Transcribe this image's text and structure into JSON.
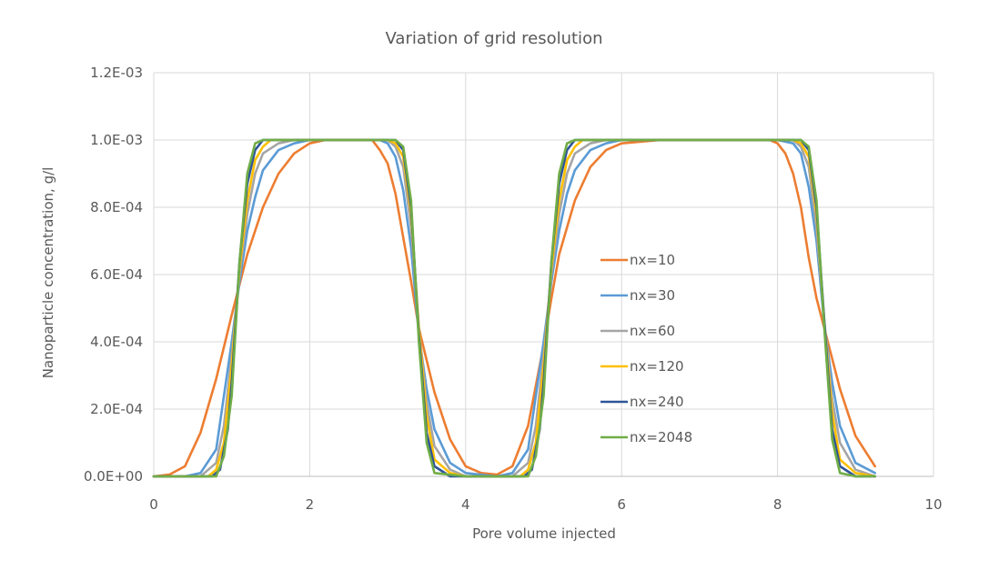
{
  "chart_data": {
    "type": "line",
    "title": "Variation of grid resolution",
    "xlabel": "Pore volume injected",
    "ylabel": "Nanoparticle concentration, g/l",
    "xlim": [
      0,
      10
    ],
    "ylim": [
      0,
      0.0012
    ],
    "x_ticks": [
      "0",
      "2",
      "4",
      "6",
      "8",
      "10"
    ],
    "y_ticks": [
      "0.0E+00",
      "2.0E-04",
      "4.0E-04",
      "6.0E-04",
      "8.0E-04",
      "1.0E-03",
      "1.2E-03"
    ],
    "grid": true,
    "legend_position": "inside-right",
    "series": [
      {
        "name": "nx=10",
        "color": "#ED7D31",
        "x": [
          0,
          0.2,
          0.4,
          0.6,
          0.8,
          1.0,
          1.1,
          1.2,
          1.4,
          1.6,
          1.8,
          2.0,
          2.2,
          2.5,
          2.8,
          2.9,
          3.0,
          3.1,
          3.2,
          3.3,
          3.4,
          3.6,
          3.8,
          4.0,
          4.2,
          4.4,
          4.6,
          4.8,
          5.0,
          5.1,
          5.2,
          5.4,
          5.6,
          5.8,
          6.0,
          6.5,
          7.0,
          7.5,
          7.9,
          8.0,
          8.1,
          8.2,
          8.3,
          8.4,
          8.5,
          8.6,
          8.8,
          9.0,
          9.25
        ],
        "values": [
          0.0,
          5e-06,
          3e-05,
          0.00013,
          0.00029,
          0.00048,
          0.00057,
          0.00066,
          0.0008,
          0.0009,
          0.00096,
          0.00099,
          0.001,
          0.001,
          0.001,
          0.00097,
          0.00093,
          0.00084,
          0.00071,
          0.00058,
          0.00044,
          0.00025,
          0.00011,
          3e-05,
          1e-05,
          5e-06,
          3e-05,
          0.00015,
          0.00039,
          0.00053,
          0.00066,
          0.00082,
          0.00092,
          0.00097,
          0.00099,
          0.001,
          0.001,
          0.001,
          0.001,
          0.00099,
          0.00096,
          0.0009,
          0.0008,
          0.00065,
          0.00053,
          0.00044,
          0.00026,
          0.00012,
          3e-05
        ]
      },
      {
        "name": "nx=30",
        "color": "#5B9BD5",
        "x": [
          0,
          0.4,
          0.6,
          0.8,
          1.0,
          1.1,
          1.2,
          1.3,
          1.4,
          1.6,
          1.8,
          2.0,
          2.5,
          2.9,
          3.0,
          3.1,
          3.2,
          3.3,
          3.4,
          3.5,
          3.6,
          3.8,
          4.0,
          4.4,
          4.6,
          4.8,
          5.0,
          5.1,
          5.2,
          5.3,
          5.4,
          5.6,
          5.8,
          6.0,
          7.0,
          8.0,
          8.2,
          8.3,
          8.4,
          8.5,
          8.6,
          8.7,
          8.8,
          9.0,
          9.25
        ],
        "values": [
          0.0,
          0.0,
          1e-05,
          8e-05,
          0.0004,
          0.00058,
          0.00073,
          0.00083,
          0.00091,
          0.00097,
          0.00099,
          0.001,
          0.001,
          0.001,
          0.00099,
          0.00095,
          0.00085,
          0.00068,
          0.00042,
          0.00026,
          0.00014,
          4e-05,
          1e-05,
          0.0,
          1e-05,
          8e-05,
          0.0004,
          0.00058,
          0.00073,
          0.00084,
          0.00091,
          0.00097,
          0.00099,
          0.001,
          0.001,
          0.001,
          0.00099,
          0.00096,
          0.00086,
          0.0007,
          0.00045,
          0.00028,
          0.00015,
          4e-05,
          1e-05
        ]
      },
      {
        "name": "nx=60",
        "color": "#A5A5A5",
        "x": [
          0,
          0.6,
          0.8,
          0.9,
          1.0,
          1.1,
          1.2,
          1.3,
          1.4,
          1.6,
          1.8,
          2.0,
          2.5,
          3.0,
          3.1,
          3.2,
          3.3,
          3.4,
          3.5,
          3.6,
          3.8,
          4.0,
          4.6,
          4.8,
          4.9,
          5.0,
          5.1,
          5.2,
          5.3,
          5.4,
          5.6,
          5.8,
          6.0,
          7.0,
          8.0,
          8.2,
          8.3,
          8.4,
          8.5,
          8.6,
          8.7,
          8.8,
          9.0,
          9.25
        ],
        "values": [
          0.0,
          0.0,
          4e-05,
          0.00015,
          0.00036,
          0.0006,
          0.00078,
          0.0009,
          0.00096,
          0.00099,
          0.001,
          0.001,
          0.001,
          0.001,
          0.00098,
          0.00092,
          0.00074,
          0.00044,
          0.00022,
          9e-05,
          2e-05,
          0.0,
          0.0,
          4e-05,
          0.00015,
          0.00036,
          0.0006,
          0.00078,
          0.0009,
          0.00096,
          0.00099,
          0.001,
          0.001,
          0.001,
          0.001,
          0.001,
          0.00098,
          0.00092,
          0.00074,
          0.00046,
          0.00023,
          0.0001,
          2e-05,
          0.0
        ]
      },
      {
        "name": "nx=120",
        "color": "#FFC000",
        "x": [
          0,
          0.7,
          0.8,
          0.9,
          1.0,
          1.1,
          1.2,
          1.3,
          1.4,
          1.5,
          1.6,
          2.0,
          3.0,
          3.1,
          3.2,
          3.3,
          3.4,
          3.5,
          3.6,
          3.8,
          4.0,
          4.7,
          4.8,
          4.9,
          5.0,
          5.1,
          5.2,
          5.3,
          5.4,
          5.5,
          5.6,
          6.0,
          8.0,
          8.2,
          8.3,
          8.4,
          8.5,
          8.6,
          8.7,
          8.8,
          9.0,
          9.25
        ],
        "values": [
          0.0,
          0.0,
          2e-05,
          0.0001,
          0.00033,
          0.00062,
          0.00082,
          0.00094,
          0.00098,
          0.001,
          0.001,
          0.001,
          0.001,
          0.00099,
          0.00095,
          0.00078,
          0.00044,
          0.00018,
          5e-05,
          1e-05,
          0.0,
          0.0,
          2e-05,
          0.0001,
          0.00033,
          0.00062,
          0.00082,
          0.00094,
          0.00098,
          0.001,
          0.001,
          0.001,
          0.001,
          0.001,
          0.00099,
          0.00095,
          0.00078,
          0.00046,
          0.00019,
          5e-05,
          1e-05,
          0.0
        ]
      },
      {
        "name": "nx=240",
        "color": "#2F5597",
        "x": [
          0,
          0.75,
          0.85,
          0.95,
          1.0,
          1.1,
          1.2,
          1.3,
          1.4,
          1.5,
          2.0,
          3.0,
          3.1,
          3.2,
          3.3,
          3.4,
          3.5,
          3.6,
          3.8,
          4.0,
          4.75,
          4.85,
          4.95,
          5.0,
          5.1,
          5.2,
          5.3,
          5.4,
          5.5,
          6.0,
          8.0,
          8.2,
          8.3,
          8.4,
          8.5,
          8.6,
          8.7,
          8.8,
          9.0,
          9.25
        ],
        "values": [
          0.0,
          0.0,
          2e-05,
          0.00014,
          0.00028,
          0.00064,
          0.00087,
          0.00097,
          0.001,
          0.001,
          0.001,
          0.001,
          0.001,
          0.00097,
          0.0008,
          0.00042,
          0.00013,
          3e-05,
          0.0,
          0.0,
          0.0,
          2e-05,
          0.00014,
          0.00028,
          0.00064,
          0.00087,
          0.00097,
          0.001,
          0.001,
          0.001,
          0.001,
          0.001,
          0.001,
          0.00097,
          0.0008,
          0.00046,
          0.00014,
          3e-05,
          0.0,
          0.0
        ]
      },
      {
        "name": "nx=2048",
        "color": "#70AD47",
        "x": [
          0,
          0.8,
          0.9,
          1.0,
          1.1,
          1.2,
          1.3,
          1.4,
          1.5,
          2.0,
          3.0,
          3.1,
          3.2,
          3.3,
          3.4,
          3.5,
          3.6,
          4.0,
          4.8,
          4.9,
          5.0,
          5.1,
          5.2,
          5.3,
          5.4,
          5.5,
          6.0,
          8.0,
          8.2,
          8.3,
          8.4,
          8.5,
          8.6,
          8.7,
          8.8,
          9.0,
          9.25
        ],
        "values": [
          0.0,
          0.0,
          6e-05,
          0.00024,
          0.00064,
          0.0009,
          0.00099,
          0.001,
          0.001,
          0.001,
          0.001,
          0.001,
          0.00098,
          0.00082,
          0.0004,
          0.0001,
          1e-05,
          0.0,
          0.0,
          6e-05,
          0.00024,
          0.00064,
          0.0009,
          0.00099,
          0.001,
          0.001,
          0.001,
          0.001,
          0.001,
          0.001,
          0.00098,
          0.00082,
          0.00044,
          0.00011,
          1e-05,
          0.0,
          0.0
        ]
      }
    ]
  }
}
